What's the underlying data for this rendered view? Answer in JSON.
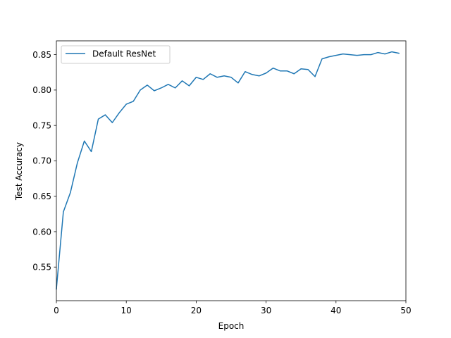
{
  "chart_data": {
    "type": "line",
    "title": "",
    "xlabel": "Epoch",
    "ylabel": "Test Accuracy",
    "xlim": [
      0,
      50
    ],
    "ylim": [
      0.5025,
      0.8695
    ],
    "xticks": [
      0,
      10,
      20,
      30,
      40,
      50
    ],
    "xtick_labels": [
      "0",
      "10",
      "20",
      "30",
      "40",
      "50"
    ],
    "yticks": [
      0.55,
      0.6,
      0.65,
      0.7,
      0.75,
      0.8,
      0.85
    ],
    "ytick_labels": [
      "0.55",
      "0.60",
      "0.65",
      "0.70",
      "0.75",
      "0.80",
      "0.85"
    ],
    "grid": false,
    "legend_position": "upper-left",
    "series": [
      {
        "name": "Default ResNet",
        "color": "#1f77b4",
        "x": [
          0,
          1,
          2,
          3,
          4,
          5,
          6,
          7,
          8,
          9,
          10,
          11,
          12,
          13,
          14,
          15,
          16,
          17,
          18,
          19,
          20,
          21,
          22,
          23,
          24,
          25,
          26,
          27,
          28,
          29,
          30,
          31,
          32,
          33,
          34,
          35,
          36,
          37,
          38,
          39,
          40,
          41,
          42,
          43,
          44,
          45,
          46,
          47,
          48,
          49
        ],
        "y": [
          0.519,
          0.628,
          0.655,
          0.697,
          0.728,
          0.713,
          0.759,
          0.765,
          0.754,
          0.768,
          0.78,
          0.784,
          0.8,
          0.807,
          0.799,
          0.803,
          0.808,
          0.803,
          0.813,
          0.806,
          0.818,
          0.815,
          0.823,
          0.818,
          0.82,
          0.818,
          0.81,
          0.826,
          0.822,
          0.82,
          0.824,
          0.831,
          0.827,
          0.827,
          0.823,
          0.83,
          0.829,
          0.819,
          0.844,
          0.847,
          0.849,
          0.851,
          0.85,
          0.849,
          0.85,
          0.85,
          0.853,
          0.851,
          0.854,
          0.852
        ]
      }
    ]
  }
}
